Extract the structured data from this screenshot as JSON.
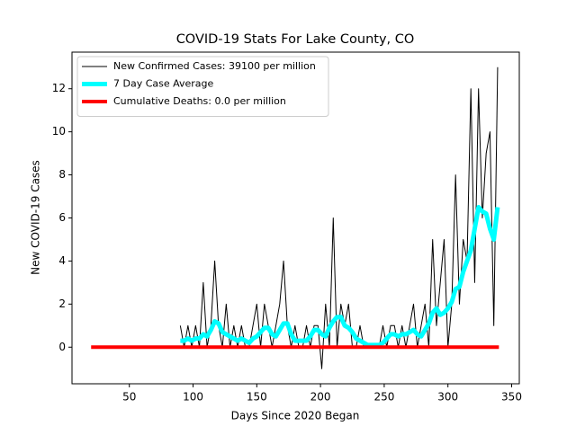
{
  "chart_data": {
    "type": "line",
    "title": "COVID-19 Stats For Lake County, CO",
    "xlabel": "Days Since 2020 Began",
    "ylabel": "New COVID-19 Cases",
    "xlim": [
      5,
      356
    ],
    "ylim": [
      -1.7,
      13.7
    ],
    "xticks": [
      50,
      100,
      150,
      200,
      250,
      300,
      350
    ],
    "yticks": [
      0,
      2,
      4,
      6,
      8,
      10,
      12
    ],
    "legend": "upper left",
    "series": [
      {
        "name": "New Confirmed Cases: 39100 per million",
        "color": "#000000",
        "width": 1,
        "x": [
          90,
          93,
          96,
          99,
          102,
          105,
          108,
          111,
          114,
          117,
          120,
          123,
          126,
          129,
          132,
          135,
          138,
          141,
          144,
          147,
          150,
          153,
          156,
          159,
          162,
          165,
          168,
          171,
          174,
          177,
          180,
          183,
          186,
          189,
          192,
          195,
          198,
          201,
          204,
          207,
          210,
          213,
          216,
          219,
          222,
          225,
          228,
          231,
          234,
          237,
          240,
          243,
          246,
          249,
          252,
          255,
          258,
          261,
          264,
          267,
          270,
          273,
          276,
          279,
          282,
          285,
          288,
          291,
          294,
          297,
          300,
          303,
          306,
          309,
          312,
          315,
          318,
          321,
          324,
          327,
          330,
          333,
          336,
          339
        ],
        "values": [
          1,
          0,
          1,
          0,
          1,
          0,
          3,
          0,
          1,
          4,
          1,
          0,
          2,
          0,
          1,
          0,
          1,
          0,
          0,
          1,
          2,
          0,
          2,
          1,
          0,
          1,
          2,
          4,
          1,
          0,
          1,
          0,
          0,
          1,
          0,
          1,
          1,
          -1,
          2,
          0,
          6,
          0,
          2,
          1,
          2,
          0,
          0,
          1,
          0,
          0,
          0,
          0,
          0,
          1,
          0,
          1,
          1,
          0,
          1,
          0,
          1,
          2,
          0,
          1,
          2,
          0,
          5,
          1,
          3,
          5,
          0,
          2,
          8,
          2,
          5,
          4,
          12,
          3,
          12,
          6,
          9,
          10,
          1,
          13
        ]
      },
      {
        "name": "7 Day Case Average",
        "color": "#00ffff",
        "width": 5,
        "x": [
          90,
          93,
          96,
          99,
          102,
          105,
          108,
          111,
          114,
          117,
          120,
          123,
          126,
          129,
          132,
          135,
          138,
          141,
          144,
          147,
          150,
          153,
          156,
          159,
          162,
          165,
          168,
          171,
          174,
          177,
          180,
          183,
          186,
          189,
          192,
          195,
          198,
          201,
          204,
          207,
          210,
          213,
          216,
          219,
          222,
          225,
          228,
          231,
          234,
          237,
          240,
          243,
          246,
          249,
          252,
          255,
          258,
          261,
          264,
          267,
          270,
          273,
          276,
          279,
          282,
          285,
          288,
          291,
          294,
          297,
          300,
          303,
          306,
          309,
          312,
          315,
          318,
          321,
          324,
          327,
          330,
          333,
          336,
          339
        ],
        "values": [
          0.3,
          0.3,
          0.4,
          0.3,
          0.4,
          0.4,
          0.6,
          0.5,
          0.8,
          1.2,
          1.1,
          0.7,
          0.6,
          0.5,
          0.4,
          0.3,
          0.4,
          0.3,
          0.2,
          0.4,
          0.5,
          0.7,
          0.9,
          0.9,
          0.6,
          0.5,
          0.8,
          1.1,
          1.1,
          0.6,
          0.3,
          0.3,
          0.3,
          0.3,
          0.5,
          0.8,
          0.8,
          0.6,
          0.5,
          0.9,
          1.2,
          1.4,
          1.4,
          1.0,
          0.9,
          0.7,
          0.4,
          0.3,
          0.2,
          0.1,
          0.1,
          0.1,
          0.1,
          0.2,
          0.4,
          0.6,
          0.6,
          0.5,
          0.6,
          0.6,
          0.7,
          0.8,
          0.6,
          0.5,
          0.8,
          1.1,
          1.6,
          1.8,
          1.5,
          1.6,
          1.8,
          2.1,
          2.7,
          2.8,
          3.5,
          4.0,
          4.5,
          5.5,
          6.5,
          6.3,
          6.2,
          5.5,
          5.0,
          6.5
        ]
      },
      {
        "name": "Cumulative Deaths: 0.0 per million",
        "color": "#ff0000",
        "width": 4,
        "x": [
          20,
          340
        ],
        "values": [
          0,
          0
        ]
      }
    ]
  }
}
